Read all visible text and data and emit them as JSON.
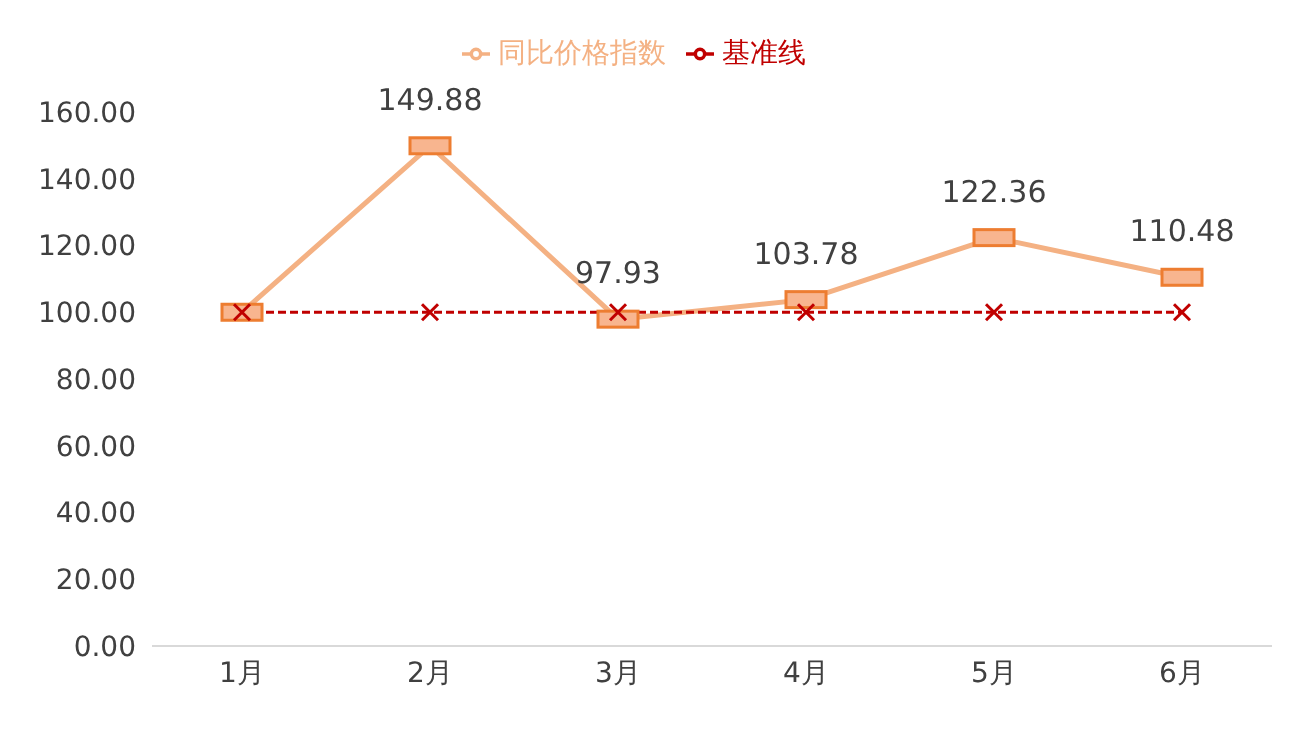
{
  "chart_data": {
    "type": "line",
    "categories": [
      "1月",
      "2月",
      "3月",
      "4月",
      "5月",
      "6月"
    ],
    "series": [
      {
        "name": "同比价格指数",
        "color": "#f4b183",
        "marker": "square",
        "line_style": "solid",
        "values": [
          100,
          149.88,
          97.93,
          103.78,
          122.36,
          110.48
        ],
        "value_labels": [
          null,
          "149.88",
          "97.93",
          "103.78",
          "122.36",
          "110.48"
        ]
      },
      {
        "name": "基准线",
        "color": "#c00000",
        "marker": "cross",
        "line_style": "dashed",
        "values": [
          100,
          100,
          100,
          100,
          100,
          100
        ]
      }
    ],
    "ylim": [
      0,
      160
    ],
    "yticks": [
      {
        "value": 0,
        "label": "0.00"
      },
      {
        "value": 20,
        "label": "20.00"
      },
      {
        "value": 40,
        "label": "40.00"
      },
      {
        "value": 60,
        "label": "60.00"
      },
      {
        "value": 80,
        "label": "80.00"
      },
      {
        "value": 100,
        "label": "100.00"
      },
      {
        "value": 120,
        "label": "120.00"
      },
      {
        "value": 140,
        "label": "140.00"
      },
      {
        "value": 160,
        "label": "160.00"
      }
    ],
    "grid": false,
    "legend": "top"
  }
}
